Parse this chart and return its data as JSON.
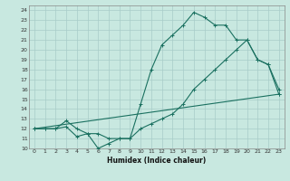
{
  "title": "",
  "xlabel": "Humidex (Indice chaleur)",
  "bg_color": "#c8e8e0",
  "line_color": "#1a7060",
  "grid_color": "#a8ccc8",
  "xlim": [
    -0.5,
    23.5
  ],
  "ylim": [
    10,
    24.5
  ],
  "xticks": [
    0,
    1,
    2,
    3,
    4,
    5,
    6,
    7,
    8,
    9,
    10,
    11,
    12,
    13,
    14,
    15,
    16,
    17,
    18,
    19,
    20,
    21,
    22,
    23
  ],
  "yticks": [
    10,
    11,
    12,
    13,
    14,
    15,
    16,
    17,
    18,
    19,
    20,
    21,
    22,
    23,
    24
  ],
  "line1_x": [
    0,
    1,
    2,
    3,
    4,
    5,
    6,
    7,
    8,
    9,
    10,
    11,
    12,
    13,
    14,
    15,
    16,
    17,
    18,
    19,
    20,
    21,
    22,
    23
  ],
  "line1_y": [
    12,
    12,
    12,
    12.2,
    11.2,
    11.5,
    10,
    10.5,
    11,
    11,
    14.5,
    18,
    20.5,
    21.5,
    22.5,
    23.8,
    23.3,
    22.5,
    22.5,
    21,
    21,
    19,
    18.5,
    16
  ],
  "line2_x": [
    0,
    1,
    2,
    3,
    4,
    5,
    6,
    7,
    8,
    9,
    10,
    11,
    12,
    13,
    14,
    15,
    16,
    17,
    18,
    19,
    20,
    21,
    22,
    23
  ],
  "line2_y": [
    12,
    12,
    12,
    12.8,
    12,
    11.5,
    11.5,
    11,
    11,
    11,
    12,
    12.5,
    13,
    13.5,
    14.5,
    16,
    17,
    18,
    19,
    20,
    21,
    19,
    18.5,
    15.5
  ],
  "line3_x": [
    0,
    23
  ],
  "line3_y": [
    12,
    15.5
  ]
}
